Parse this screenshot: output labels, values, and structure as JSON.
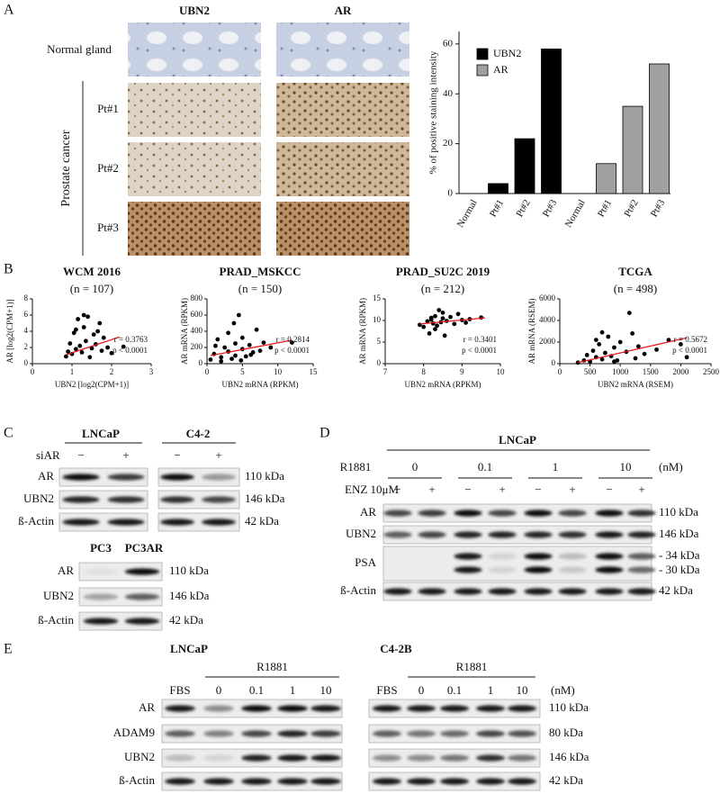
{
  "panel_labels": [
    "A",
    "B",
    "C",
    "D",
    "E"
  ],
  "panel_a": {
    "columns": [
      "UBN2",
      "AR"
    ],
    "rows": [
      "Normal gland",
      "Pt#1",
      "Pt#2",
      "Pt#3"
    ],
    "group_label": "Prostate cancer"
  },
  "chart_data": [
    {
      "type": "bar",
      "ylabel": "% of positive staining intensity",
      "categories": [
        "Normal",
        "Pt#1",
        "Pt#2",
        "Pt#3"
      ],
      "series": [
        {
          "name": "UBN2",
          "color": "#000000",
          "values": [
            0,
            4,
            22,
            58
          ]
        },
        {
          "name": "AR",
          "color": "#a0a0a0",
          "values": [
            0,
            12,
            35,
            52
          ]
        }
      ],
      "ylim": [
        0,
        65
      ],
      "yticks": [
        0,
        20,
        40,
        60
      ],
      "legend": "upper left"
    },
    {
      "type": "scatter",
      "title": "WCM 2016",
      "subtitle": "(n = 107)",
      "xlabel": "UBN2 [log2(CPM+1)]",
      "ylabel": "AR [log2(CPM+1)]",
      "xlim": [
        0,
        3
      ],
      "xticks": [
        0,
        1,
        2,
        3
      ],
      "ylim": [
        0,
        8
      ],
      "yticks": [
        0,
        2,
        4,
        6,
        8
      ],
      "x": [
        0.85,
        0.9,
        0.95,
        1.0,
        1.05,
        1.1,
        1.15,
        1.2,
        1.25,
        1.3,
        1.35,
        1.4,
        1.5,
        1.55,
        1.6,
        1.7,
        1.75,
        1.8,
        1.9,
        2.0,
        1.1,
        1.3,
        1.45,
        1.65,
        2.3
      ],
      "y": [
        0.9,
        1.5,
        2.5,
        1.2,
        3.8,
        1.8,
        5.5,
        2.2,
        1.4,
        4.5,
        2.8,
        5.8,
        1.9,
        3.6,
        2.4,
        5.0,
        1.6,
        3.2,
        2.0,
        1.3,
        4.2,
        6.0,
        0.8,
        4.0,
        2.1
      ],
      "color": "#000000",
      "trend_line": {
        "x": [
          0.85,
          2.2
        ],
        "y": [
          1.1,
          3.3
        ],
        "color": "#e41a1c"
      },
      "annotations": [
        "r = 0.3763",
        "p < 0.0001"
      ]
    },
    {
      "type": "scatter",
      "title": "PRAD_MSKCC",
      "subtitle": "(n = 150)",
      "xlabel": "UBN2  mRNA (RPKM)",
      "ylabel": "AR mRNA (RPKM)",
      "xlim": [
        0,
        15
      ],
      "xticks": [
        0,
        5,
        10,
        15
      ],
      "ylim": [
        0,
        800
      ],
      "yticks": [
        0,
        200,
        400,
        600,
        800
      ],
      "x": [
        0.5,
        1,
        1.5,
        2,
        2.5,
        3,
        3,
        3.5,
        4,
        4,
        4.5,
        5,
        5,
        5.5,
        6,
        6.5,
        7,
        7.5,
        8,
        2,
        1.2,
        3.8,
        4.8,
        6.2,
        9,
        12
      ],
      "y": [
        50,
        120,
        300,
        80,
        200,
        150,
        380,
        60,
        250,
        100,
        600,
        180,
        320,
        90,
        230,
        140,
        420,
        160,
        260,
        30,
        220,
        500,
        40,
        110,
        200,
        260
      ],
      "color": "#000000",
      "trend_line": {
        "x": [
          0.5,
          12
        ],
        "y": [
          100,
          290
        ],
        "color": "#e41a1c"
      },
      "annotations": [
        "r = 0.2814",
        "p < 0.0001"
      ]
    },
    {
      "type": "scatter",
      "title": "PRAD_SU2C 2019",
      "subtitle": "(n = 212)",
      "xlabel": "UBN2 mRNA (RPKM)",
      "ylabel": "AR mRNA (RPKM)",
      "xlim": [
        7,
        10
      ],
      "xticks": [
        7,
        8,
        9,
        10
      ],
      "ylim": [
        0,
        15
      ],
      "yticks": [
        0,
        5,
        10,
        15
      ],
      "x": [
        7.9,
        8.0,
        8.1,
        8.15,
        8.2,
        8.25,
        8.3,
        8.35,
        8.4,
        8.45,
        8.5,
        8.55,
        8.6,
        8.7,
        8.8,
        8.9,
        9.0,
        9.1,
        9.2,
        8.3,
        8.5,
        8.2,
        9.5
      ],
      "y": [
        9.0,
        8.5,
        9.8,
        7.0,
        10.2,
        9.3,
        11.0,
        8.8,
        12.4,
        9.6,
        10.5,
        6.5,
        9.9,
        10.8,
        9.2,
        11.5,
        10.1,
        9.5,
        10.3,
        8.0,
        11.8,
        10.6,
        10.7
      ],
      "color": "#000000",
      "trend_line": {
        "x": [
          7.9,
          9.6
        ],
        "y": [
          9.2,
          10.6
        ],
        "color": "#e41a1c"
      },
      "annotations": [
        "r = 0.3401",
        "p < 0.0001"
      ]
    },
    {
      "type": "scatter",
      "title": "TCGA",
      "subtitle": "(n = 498)",
      "xlabel": "UBN2 mRNA (RSEM)",
      "ylabel": "AR mRNA (RSEM)",
      "xlim": [
        0,
        2500
      ],
      "xticks": [
        0,
        500,
        1000,
        1500,
        2000,
        2500
      ],
      "ylim": [
        0,
        6000
      ],
      "yticks": [
        0,
        2000,
        4000,
        6000
      ],
      "x": [
        300,
        400,
        450,
        500,
        550,
        600,
        650,
        700,
        750,
        800,
        850,
        900,
        950,
        1000,
        1100,
        1200,
        1300,
        1400,
        1600,
        1800,
        2000,
        2100,
        700,
        900,
        1150,
        600,
        1250
      ],
      "y": [
        100,
        300,
        800,
        200,
        1200,
        600,
        1800,
        400,
        1000,
        2500,
        700,
        1500,
        300,
        2000,
        1100,
        2800,
        1600,
        900,
        1300,
        2200,
        1800,
        600,
        2900,
        200,
        4700,
        2200,
        500
      ],
      "color": "#000000",
      "trend_line": {
        "x": [
          300,
          2100
        ],
        "y": [
          100,
          2400
        ],
        "color": "#e41a1c"
      },
      "annotations": [
        "r = 0.5672",
        "p < 0.0001"
      ]
    }
  ],
  "panel_c": {
    "cells": [
      "LNCaP",
      "C4-2"
    ],
    "treatment": "siAR",
    "lanes": [
      "−",
      "+",
      "−",
      "+"
    ],
    "rows": [
      "AR",
      "UBN2",
      "ß-Actin"
    ],
    "sizes": [
      "110 kDa",
      "146 kDa",
      "42 kDa"
    ],
    "lower": {
      "cells": [
        "PC3",
        "PC3AR"
      ],
      "rows": [
        "AR",
        "UBN2",
        "ß-Actin"
      ],
      "sizes": [
        "110 kDa",
        "146 kDa",
        "42 kDa"
      ]
    }
  },
  "panel_d": {
    "cell": "LNCaP",
    "treatment": "R1881",
    "doses": [
      "0",
      "0.1",
      "1",
      "10"
    ],
    "unit": "(nM)",
    "enz": "ENZ 10μM",
    "lanes": [
      "−",
      "+",
      "−",
      "+",
      "−",
      "+",
      "−",
      "+"
    ],
    "rows": [
      "AR",
      "UBN2",
      "PSA",
      "ß-Actin"
    ],
    "sizes": [
      "110 kDa",
      "146 kDa",
      "- 34 kDa",
      "- 30 kDa",
      "42 kDa"
    ]
  },
  "panel_e": {
    "blots": [
      {
        "cell": "LNCaP",
        "treatment": "R1881",
        "lanes": [
          "FBS",
          "0",
          "0.1",
          "1",
          "10"
        ]
      },
      {
        "cell": "C4-2B",
        "treatment": "R1881",
        "lanes": [
          "FBS",
          "0",
          "0.1",
          "1",
          "10"
        ]
      }
    ],
    "unit": "(nM)",
    "rows": [
      "AR",
      "ADAM9",
      "UBN2",
      "ß-Actin"
    ],
    "sizes": [
      "110 kDa",
      "80 kDa",
      "146 kDa",
      "42 kDa"
    ]
  }
}
